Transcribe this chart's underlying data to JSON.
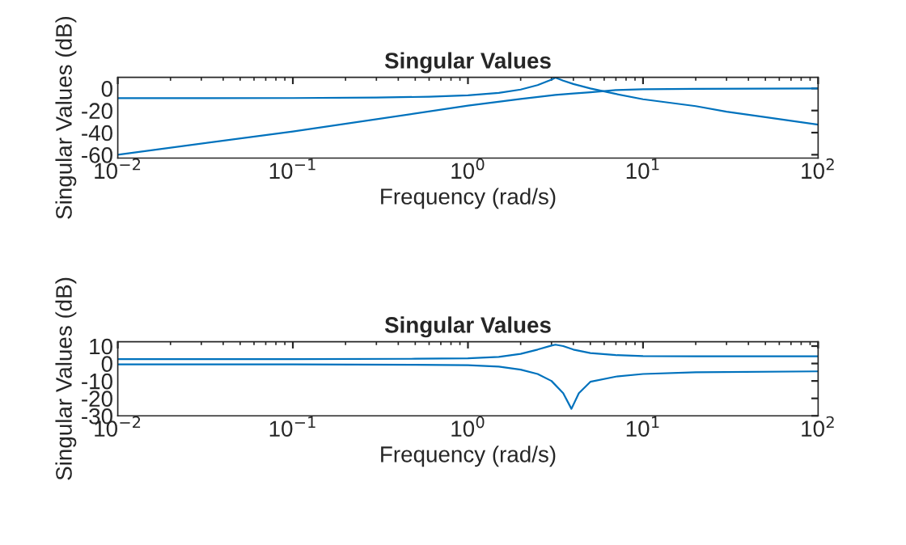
{
  "chart_data": [
    {
      "type": "line",
      "title": "Singular Values",
      "xlabel": "Frequency (rad/s)",
      "ylabel": "Singular Values (dB)",
      "log": "x",
      "grid": false,
      "xlim": [
        0.01,
        100
      ],
      "xticks": [
        {
          "value": 0.01,
          "label": "10$^{−2}$"
        },
        {
          "value": 0.1,
          "label": "10$^{−1}$"
        },
        {
          "value": 1,
          "label": "10$^{0}$"
        },
        {
          "value": 10,
          "label": "10$^{1}$"
        },
        {
          "value": 100,
          "label": "10$^{2}$"
        }
      ],
      "ylim": [
        -63,
        10
      ],
      "yticks": [
        -60,
        -40,
        -20,
        0
      ],
      "series": [
        {
          "color": "#0072bd",
          "x": [
            0.01,
            0.1,
            0.3,
            0.6,
            1,
            1.5,
            2,
            2.5,
            3,
            3.16,
            3.5,
            4,
            5,
            7,
            10,
            20,
            30,
            50,
            100
          ],
          "values": [
            -8.8,
            -8.7,
            -8.3,
            -7.5,
            -6.3,
            -4,
            -1,
            3,
            8,
            9.8,
            7,
            4,
            0,
            -5,
            -9.8,
            -16,
            -21,
            -26,
            -32.7
          ]
        },
        {
          "color": "#0072bd",
          "x": [
            0.01,
            0.1,
            1,
            2,
            3.16,
            4,
            5,
            7,
            10,
            20,
            100
          ],
          "values": [
            -60,
            -39,
            -15.6,
            -9.5,
            -5.9,
            -4.5,
            -3.4,
            -1.5,
            -0.8,
            -0.3,
            0
          ]
        }
      ]
    },
    {
      "type": "line",
      "title": "Singular Values",
      "xlabel": "Frequency (rad/s)",
      "ylabel": "Singular Values (dB)",
      "log": "x",
      "grid": false,
      "xlim": [
        0.01,
        100
      ],
      "xticks": [
        {
          "value": 0.01,
          "label": "10$^{−2}$"
        },
        {
          "value": 0.1,
          "label": "10$^{−1}$"
        },
        {
          "value": 1,
          "label": "10$^{0}$"
        },
        {
          "value": 10,
          "label": "10$^{1}$"
        },
        {
          "value": 100,
          "label": "10$^{2}$"
        }
      ],
      "ylim": [
        -30,
        12.5
      ],
      "yticks": [
        -30,
        -20,
        -10,
        0,
        10
      ],
      "series": [
        {
          "color": "#0072bd",
          "x": [
            0.01,
            0.1,
            0.5,
            1,
            1.5,
            2,
            2.5,
            3,
            3.16,
            3.5,
            4,
            5,
            7,
            10,
            20,
            100
          ],
          "values": [
            2.5,
            2.5,
            2.7,
            3,
            3.8,
            5.5,
            8,
            10.3,
            10.8,
            10,
            8,
            6,
            4.8,
            4.3,
            4.1,
            4.1
          ]
        },
        {
          "color": "#0072bd",
          "x": [
            0.01,
            0.1,
            0.5,
            1,
            1.5,
            2,
            2.5,
            3,
            3.5,
            3.9,
            4.3,
            5,
            7,
            10,
            20,
            100
          ],
          "values": [
            -0.5,
            -0.5,
            -0.7,
            -1,
            -1.8,
            -3.5,
            -6,
            -10,
            -17,
            -26,
            -17,
            -10.5,
            -7.5,
            -6,
            -5,
            -4.5
          ]
        }
      ]
    }
  ]
}
